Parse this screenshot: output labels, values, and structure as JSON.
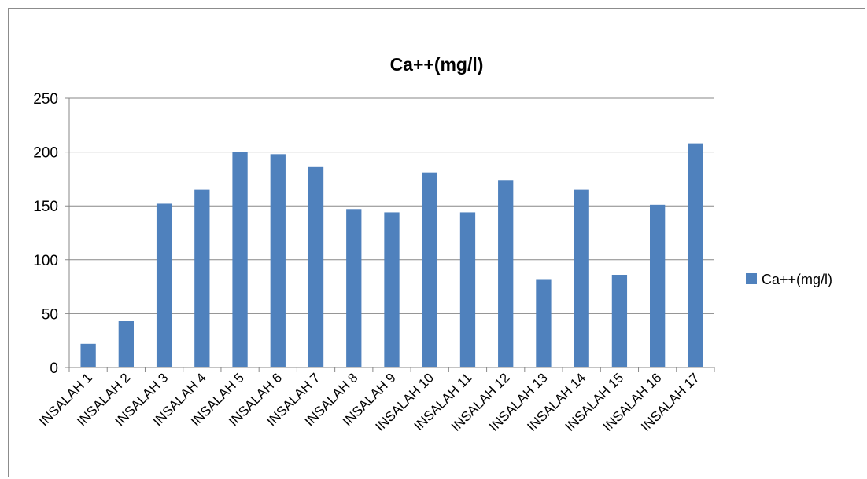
{
  "chart_data": {
    "type": "bar",
    "title": "Ca++(mg/l)",
    "xlabel": "",
    "ylabel": "",
    "ylim": [
      0,
      250
    ],
    "yticks": [
      0,
      50,
      100,
      150,
      200,
      250
    ],
    "categories": [
      "INSALAH 1",
      "INSALAH 2",
      "INSALAH 3",
      "INSALAH 4",
      "INSALAH 5",
      "INSALAH 6",
      "INSALAH 7",
      "INSALAH 8",
      "INSALAH 9",
      "INSALAH 10",
      "INSALAH 11",
      "INSALAH 12",
      "INSALAH 13",
      "INSALAH 14",
      "INSALAH 15",
      "INSALAH 16",
      "INSALAH 17"
    ],
    "series": [
      {
        "name": "Ca++(mg/l)",
        "color": "#4f81bd",
        "values": [
          22,
          43,
          152,
          165,
          200,
          198,
          186,
          147,
          144,
          181,
          144,
          174,
          82,
          165,
          86,
          151,
          208
        ]
      }
    ],
    "grid": true,
    "legend": "right"
  }
}
